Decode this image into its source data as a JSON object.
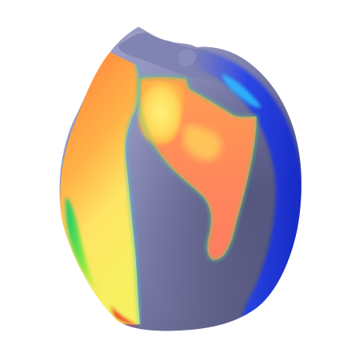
{
  "scene": {
    "background_color": "#ffffff",
    "subject": "3d-heart-activation-map",
    "colormap": [
      "#0000c8",
      "#00a0ff",
      "#00e08c",
      "#e6f53c",
      "#ffd84a",
      "#ff9a4a",
      "#ff5a3a",
      "#e8201e"
    ],
    "colors": {
      "tissue_shadow": "#5c5e84",
      "tissue_mid": "#8c8eb8",
      "tissue_highlight": "#b6b8d8",
      "wash_orange": "#ff9955",
      "wash_peach": "#ff8f62",
      "hot_yellow": "#ffe564",
      "cool_blue": "#1f3ff0"
    }
  }
}
